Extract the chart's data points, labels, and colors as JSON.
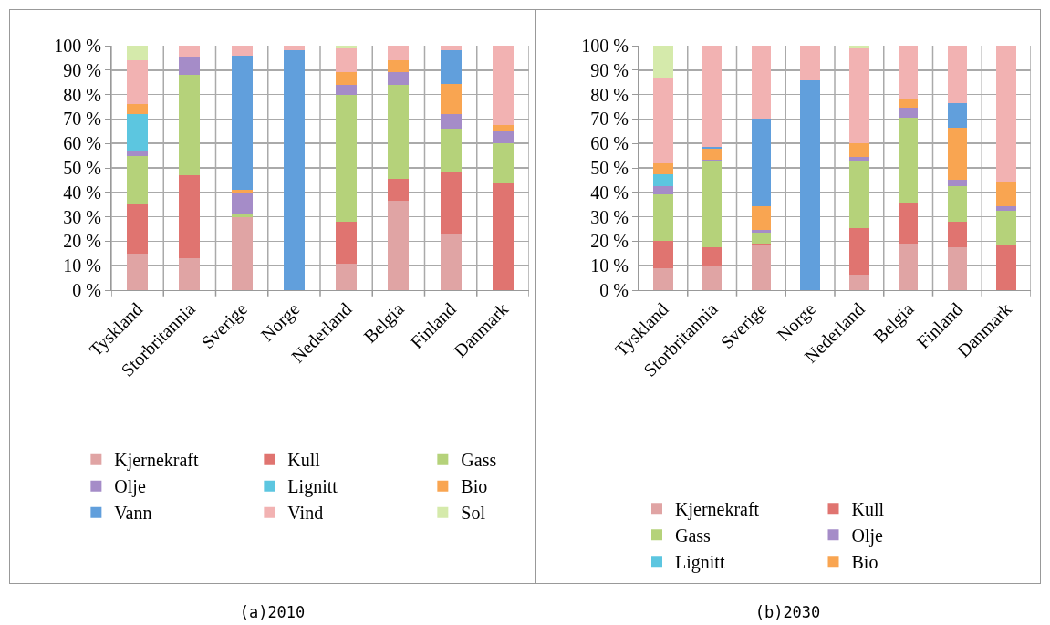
{
  "chart_data": [
    {
      "type": "bar",
      "title": "(a)2010",
      "stacked": true,
      "grid": true,
      "legend": "bottom",
      "categories": [
        "Tyskland",
        "Storbritannia",
        "Sverige",
        "Norge",
        "Nederland",
        "Belgia",
        "Finland",
        "Danmark"
      ],
      "ylim": [
        0,
        100
      ],
      "yticks": [
        {
          "value": 0,
          "label": "0 %"
        },
        {
          "value": 10,
          "label": "10 %"
        },
        {
          "value": 20,
          "label": "20 %"
        },
        {
          "value": 30,
          "label": "30 %"
        },
        {
          "value": 40,
          "label": "40 %"
        },
        {
          "value": 50,
          "label": "50 %"
        },
        {
          "value": 60,
          "label": "60 %"
        },
        {
          "value": 70,
          "label": "70 %"
        },
        {
          "value": 80,
          "label": "80 %"
        },
        {
          "value": 90,
          "label": "90 %"
        },
        {
          "value": 100,
          "label": "100 %"
        }
      ],
      "series": [
        {
          "name": "Kjernekraft",
          "color": "#e0a4a4",
          "values": [
            15,
            13,
            30,
            0,
            11,
            36.5,
            23,
            0
          ]
        },
        {
          "name": "Kull",
          "color": "#e07470",
          "values": [
            20,
            34,
            0,
            0,
            17,
            9,
            25.5,
            43.5
          ]
        },
        {
          "name": "Gass",
          "color": "#b5d27a",
          "values": [
            20,
            41,
            1,
            0,
            52,
            38.5,
            17.5,
            16.5
          ]
        },
        {
          "name": "Olje",
          "color": "#a58cc8",
          "values": [
            2,
            7,
            9,
            0,
            4,
            5,
            6,
            5
          ]
        },
        {
          "name": "Lignitt",
          "color": "#5cc6e0",
          "values": [
            15,
            0,
            0,
            0,
            0,
            0,
            0,
            0
          ]
        },
        {
          "name": "Bio",
          "color": "#f9a551",
          "values": [
            4,
            0,
            1,
            0,
            5,
            5,
            12.5,
            2.5
          ]
        },
        {
          "name": "Vann",
          "color": "#619fdc",
          "values": [
            0,
            0,
            55,
            98,
            0,
            0,
            13.5,
            0
          ]
        },
        {
          "name": "Vind",
          "color": "#f2b2b2",
          "values": [
            18,
            5,
            4,
            2,
            10,
            6,
            2,
            32.5
          ]
        },
        {
          "name": "Sol",
          "color": "#d5eaab",
          "values": [
            6,
            0,
            0,
            0,
            1,
            0,
            0,
            0
          ]
        }
      ]
    },
    {
      "type": "bar",
      "title": "(b)2030",
      "stacked": true,
      "grid": true,
      "legend": "bottom",
      "categories": [
        "Tyskland",
        "Storbritannia",
        "Sverige",
        "Norge",
        "Nederland",
        "Belgia",
        "Finland",
        "Danmark"
      ],
      "ylim": [
        0,
        100
      ],
      "yticks": [
        {
          "value": 0,
          "label": "0 %"
        },
        {
          "value": 10,
          "label": "10 %"
        },
        {
          "value": 20,
          "label": "20 %"
        },
        {
          "value": 30,
          "label": "30 %"
        },
        {
          "value": 40,
          "label": "40 %"
        },
        {
          "value": 50,
          "label": "50 %"
        },
        {
          "value": 60,
          "label": "60 %"
        },
        {
          "value": 70,
          "label": "70 %"
        },
        {
          "value": 80,
          "label": "80 %"
        },
        {
          "value": 90,
          "label": "90 %"
        },
        {
          "value": 100,
          "label": "100 %"
        }
      ],
      "series": [
        {
          "name": "Kjernekraft",
          "color": "#e0a4a4",
          "values": [
            9,
            10,
            18.5,
            0,
            6.5,
            19,
            17.5,
            0
          ]
        },
        {
          "name": "Kull",
          "color": "#e07470",
          "values": [
            11,
            7.5,
            0.5,
            0,
            19,
            16.5,
            10.5,
            18.5
          ]
        },
        {
          "name": "Gass",
          "color": "#b5d27a",
          "values": [
            19,
            35,
            4.5,
            0,
            27,
            35,
            14.5,
            14
          ]
        },
        {
          "name": "Olje",
          "color": "#a58cc8",
          "values": [
            3.5,
            1,
            1,
            0,
            2,
            4,
            2.5,
            2
          ]
        },
        {
          "name": "Lignitt",
          "color": "#5cc6e0",
          "values": [
            5,
            0,
            0,
            0,
            0,
            0,
            0,
            0
          ]
        },
        {
          "name": "Bio",
          "color": "#f9a551",
          "values": [
            4.5,
            4.5,
            10,
            0,
            5.5,
            3.5,
            21.5,
            10
          ]
        },
        {
          "color": "#619fdc",
          "values": [
            0,
            0.5,
            35.5,
            86,
            0,
            0,
            10,
            0
          ]
        },
        {
          "color": "#f2b2b2",
          "values": [
            34.5,
            41.5,
            30,
            14,
            39,
            22,
            23.5,
            55.5
          ]
        },
        {
          "color": "#d5eaab",
          "values": [
            13.5,
            0,
            0,
            0,
            1,
            0,
            0,
            0
          ]
        }
      ]
    }
  ]
}
